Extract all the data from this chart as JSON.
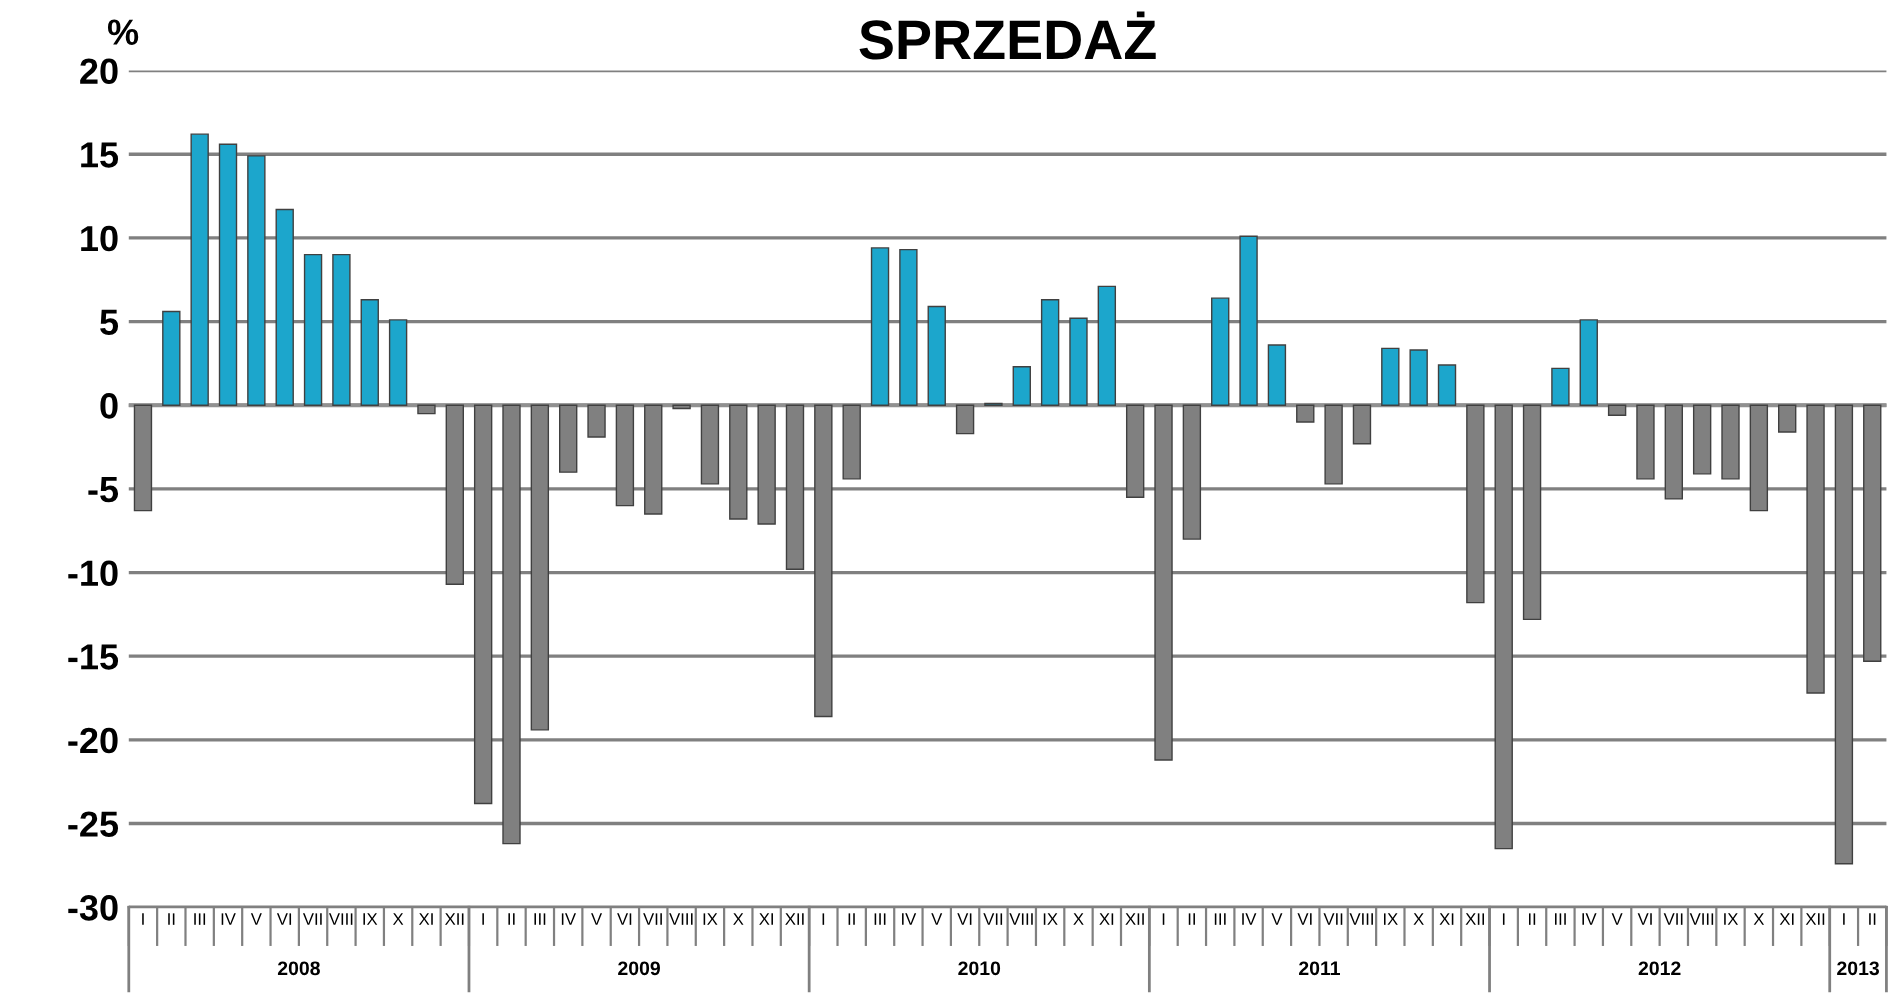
{
  "chart_data": {
    "type": "bar",
    "title": "SPRZEDAŻ",
    "ylabel": "%",
    "categories": [
      "I",
      "II",
      "III",
      "IV",
      "V",
      "VI",
      "VII",
      "VIII",
      "IX",
      "X",
      "XI",
      "XII",
      "I",
      "II",
      "III",
      "IV",
      "V",
      "VI",
      "VII",
      "VIII",
      "IX",
      "X",
      "XI",
      "XII",
      "I",
      "II",
      "III",
      "IV",
      "V",
      "VI",
      "VII",
      "VIII",
      "IX",
      "X",
      "XI",
      "XII",
      "I",
      "II",
      "III",
      "IV",
      "V",
      "VI",
      "VII",
      "VIII",
      "IX",
      "X",
      "XI",
      "XII",
      "I",
      "II",
      "III",
      "IV",
      "V",
      "VI",
      "VII",
      "VIII",
      "IX",
      "X",
      "XI",
      "XII",
      "I",
      "II"
    ],
    "values": [
      -6.3,
      5.6,
      16.2,
      15.6,
      14.9,
      11.7,
      9.0,
      9.0,
      6.3,
      5.1,
      -0.5,
      -10.7,
      -23.8,
      -26.2,
      -19.4,
      -4.0,
      -1.9,
      -6.0,
      -6.5,
      -0.2,
      -4.7,
      -6.8,
      -7.1,
      -9.8,
      -18.6,
      -4.4,
      9.4,
      9.3,
      5.9,
      -1.7,
      0.1,
      2.3,
      6.3,
      5.2,
      7.1,
      -5.5,
      -21.2,
      -8.0,
      6.4,
      10.1,
      3.6,
      -1.0,
      -4.7,
      -2.3,
      3.4,
      3.3,
      2.4,
      -11.8,
      -26.5,
      -12.8,
      2.2,
      5.1,
      -0.6,
      -4.4,
      -5.6,
      -4.1,
      -4.4,
      -6.3,
      -1.6,
      -17.2,
      -27.4,
      -15.3
    ],
    "colors": [
      "#808080",
      "#1ca6cc",
      "#1ca6cc",
      "#1ca6cc",
      "#1ca6cc",
      "#1ca6cc",
      "#1ca6cc",
      "#1ca6cc",
      "#1ca6cc",
      "#1ca6cc",
      "#808080",
      "#808080",
      "#808080",
      "#808080",
      "#808080",
      "#808080",
      "#808080",
      "#808080",
      "#808080",
      "#808080",
      "#808080",
      "#808080",
      "#808080",
      "#808080",
      "#808080",
      "#808080",
      "#1ca6cc",
      "#1ca6cc",
      "#1ca6cc",
      "#808080",
      "#1ca6cc",
      "#1ca6cc",
      "#1ca6cc",
      "#1ca6cc",
      "#1ca6cc",
      "#808080",
      "#808080",
      "#808080",
      "#1ca6cc",
      "#1ca6cc",
      "#1ca6cc",
      "#808080",
      "#808080",
      "#808080",
      "#1ca6cc",
      "#1ca6cc",
      "#1ca6cc",
      "#808080",
      "#808080",
      "#808080",
      "#1ca6cc",
      "#1ca6cc",
      "#808080",
      "#808080",
      "#808080",
      "#808080",
      "#808080",
      "#808080",
      "#808080",
      "#808080",
      "#808080",
      "#808080"
    ],
    "annotations": [
      "2008",
      "2009",
      "2010",
      "2011",
      "2012",
      "2013"
    ],
    "ylim": [
      -30,
      20
    ],
    "yticks": [
      -30,
      -25,
      -20,
      -15,
      -10,
      -5,
      0,
      5,
      10,
      15,
      20
    ],
    "grid": "y"
  }
}
